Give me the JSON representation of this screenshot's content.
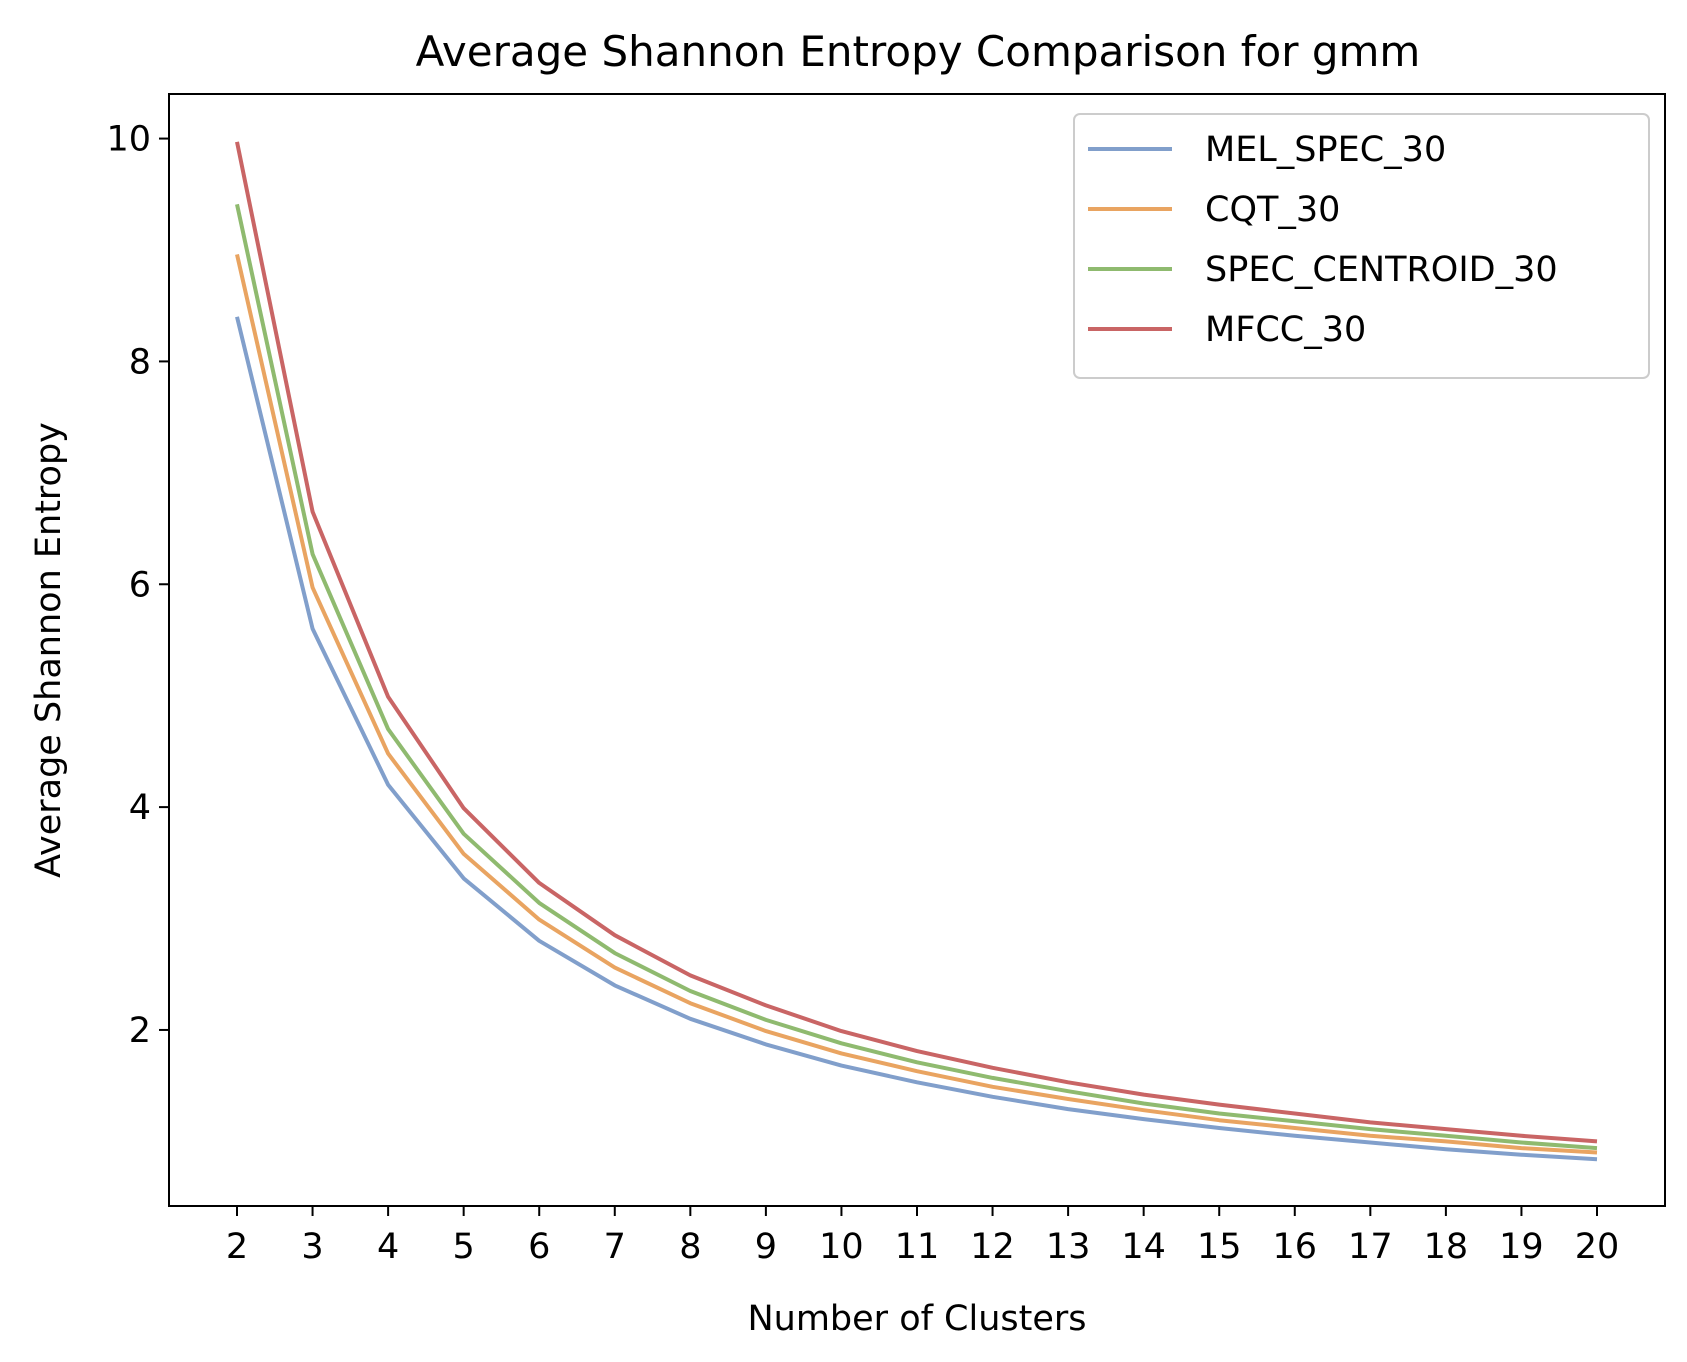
{
  "chart_data": {
    "type": "line",
    "title": "Average Shannon Entropy Comparison for gmm",
    "xlabel": "Number of Clusters",
    "ylabel": "Average Shannon Entropy",
    "x": [
      2,
      3,
      4,
      5,
      6,
      7,
      8,
      9,
      10,
      11,
      12,
      13,
      14,
      15,
      16,
      17,
      18,
      19,
      20
    ],
    "xlim": [
      1.1,
      20.9
    ],
    "ylim": [
      0.42,
      10.4
    ],
    "yticks": [
      2,
      4,
      6,
      8,
      10
    ],
    "grid": false,
    "legend_position": "top-right",
    "series": [
      {
        "name": "MEL_SPEC_30",
        "color": "#819fcb",
        "values": [
          8.4,
          5.6,
          4.2,
          3.36,
          2.8,
          2.4,
          2.1,
          1.87,
          1.68,
          1.53,
          1.4,
          1.29,
          1.2,
          1.12,
          1.05,
          0.99,
          0.93,
          0.88,
          0.84
        ]
      },
      {
        "name": "CQT_30",
        "color": "#e9a461",
        "values": [
          8.96,
          5.97,
          4.48,
          3.58,
          2.99,
          2.56,
          2.24,
          1.99,
          1.79,
          1.63,
          1.49,
          1.38,
          1.28,
          1.19,
          1.12,
          1.05,
          1.0,
          0.94,
          0.9
        ]
      },
      {
        "name": "SPEC_CENTROID_30",
        "color": "#8fba6f",
        "values": [
          9.41,
          6.27,
          4.7,
          3.76,
          3.14,
          2.69,
          2.35,
          2.09,
          1.88,
          1.71,
          1.57,
          1.45,
          1.34,
          1.25,
          1.18,
          1.11,
          1.05,
          0.99,
          0.94
        ]
      },
      {
        "name": "MFCC_30",
        "color": "#c96565",
        "values": [
          9.97,
          6.65,
          4.99,
          3.99,
          3.32,
          2.85,
          2.49,
          2.22,
          1.99,
          1.81,
          1.66,
          1.53,
          1.42,
          1.33,
          1.25,
          1.17,
          1.11,
          1.05,
          1.0
        ]
      }
    ]
  }
}
